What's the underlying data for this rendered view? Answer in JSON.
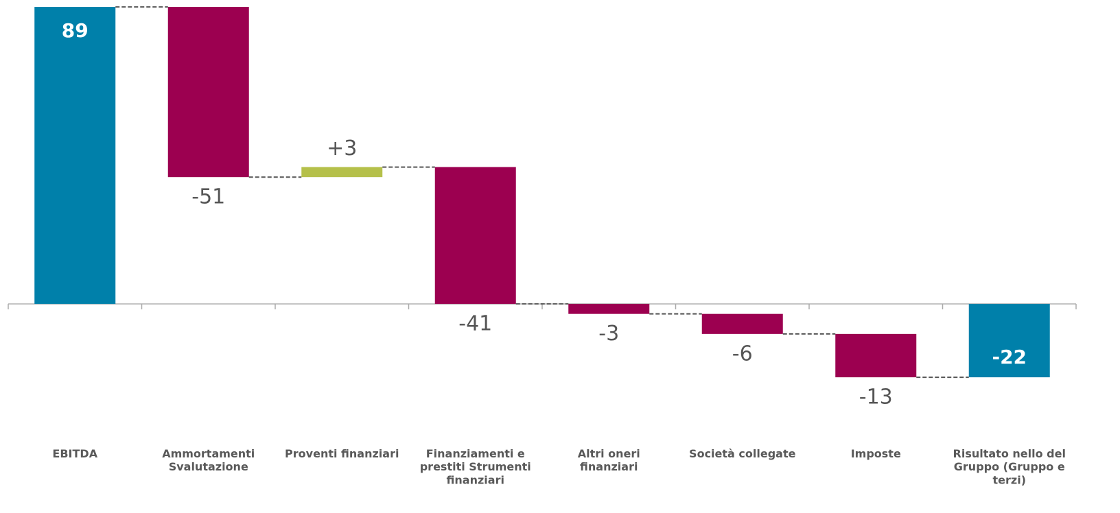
{
  "chart_data": {
    "type": "waterfall",
    "categories": [
      "EBITDA",
      "Ammortamenti Svalutazione",
      "Proventi finanziari",
      "Finanziamenti e prestiti Strumenti finanziari",
      "Altri oneri finanziari",
      "Società collegate",
      "Imposte",
      "Risultato nello del Gruppo (Gruppo e terzi)"
    ],
    "values": [
      89,
      -51,
      3,
      -41,
      -3,
      -6,
      -13,
      -22
    ],
    "value_labels": [
      "89",
      "-51",
      "+3",
      "-41",
      "-3",
      "-6",
      "-13",
      "-22"
    ],
    "measures": [
      "total",
      "relative",
      "relative",
      "relative",
      "relative",
      "relative",
      "relative",
      "total"
    ],
    "colors": {
      "total": "#0080aa",
      "increase": "#b5c04a",
      "decrease": "#9c0050"
    },
    "ylim": [
      -60,
      90
    ]
  }
}
